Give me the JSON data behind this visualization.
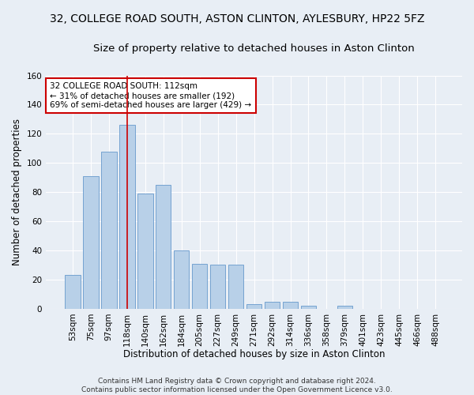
{
  "title_line1": "32, COLLEGE ROAD SOUTH, ASTON CLINTON, AYLESBURY, HP22 5FZ",
  "title_line2": "Size of property relative to detached houses in Aston Clinton",
  "xlabel": "Distribution of detached houses by size in Aston Clinton",
  "ylabel": "Number of detached properties",
  "categories": [
    "53sqm",
    "75sqm",
    "97sqm",
    "118sqm",
    "140sqm",
    "162sqm",
    "184sqm",
    "205sqm",
    "227sqm",
    "249sqm",
    "271sqm",
    "292sqm",
    "314sqm",
    "336sqm",
    "358sqm",
    "379sqm",
    "401sqm",
    "423sqm",
    "445sqm",
    "466sqm",
    "488sqm"
  ],
  "values": [
    23,
    91,
    108,
    126,
    79,
    85,
    40,
    31,
    30,
    30,
    3,
    5,
    5,
    2,
    0,
    2,
    0,
    0,
    0,
    0,
    0
  ],
  "bar_color": "#b8d0e8",
  "bar_edgecolor": "#6699cc",
  "vline_x": 3.0,
  "vline_color": "#cc0000",
  "ylim": [
    0,
    160
  ],
  "yticks": [
    0,
    20,
    40,
    60,
    80,
    100,
    120,
    140,
    160
  ],
  "annotation_text": "32 COLLEGE ROAD SOUTH: 112sqm\n← 31% of detached houses are smaller (192)\n69% of semi-detached houses are larger (429) →",
  "annotation_box_facecolor": "#ffffff",
  "annotation_box_edgecolor": "#cc0000",
  "footer_line1": "Contains HM Land Registry data © Crown copyright and database right 2024.",
  "footer_line2": "Contains public sector information licensed under the Open Government Licence v3.0.",
  "background_color": "#e8eef5",
  "plot_background_color": "#e8eef5",
  "grid_color": "#ffffff",
  "title_fontsize": 10,
  "subtitle_fontsize": 9.5,
  "axis_label_fontsize": 8.5,
  "tick_fontsize": 7.5,
  "annotation_fontsize": 7.5,
  "footer_fontsize": 6.5
}
